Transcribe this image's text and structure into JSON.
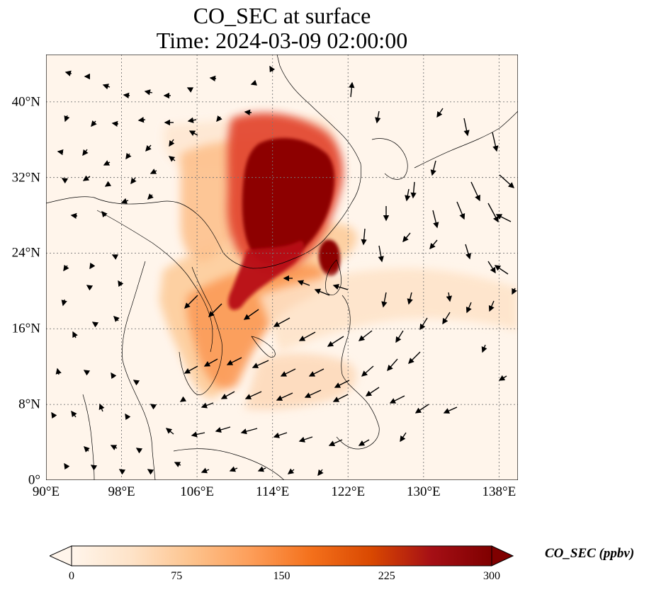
{
  "title": {
    "line1": "CO_SEC at surface",
    "line2": "Time: 2024-03-09 02:00:00"
  },
  "map": {
    "lon_range": [
      90,
      140
    ],
    "lat_range": [
      0,
      45
    ],
    "xticks": [
      {
        "value": 90,
        "label": "90°E"
      },
      {
        "value": 98,
        "label": "98°E"
      },
      {
        "value": 106,
        "label": "106°E"
      },
      {
        "value": 114,
        "label": "114°E"
      },
      {
        "value": 122,
        "label": "122°E"
      },
      {
        "value": 130,
        "label": "130°E"
      },
      {
        "value": 138,
        "label": "138°E"
      }
    ],
    "yticks": [
      {
        "value": 0,
        "label": "0°"
      },
      {
        "value": 8,
        "label": "8°N"
      },
      {
        "value": 16,
        "label": "16°N"
      },
      {
        "value": 24,
        "label": "24°N"
      },
      {
        "value": 32,
        "label": "32°N"
      },
      {
        "value": 40,
        "label": "40°N"
      }
    ]
  },
  "colorbar": {
    "label": "CO_SEC (ppbv)",
    "range": [
      0,
      300
    ],
    "ticks": [
      "0",
      "75",
      "150",
      "225",
      "300"
    ],
    "colors": [
      "#fff5eb",
      "#fee3c8",
      "#fdc38d",
      "#fd9d58",
      "#f4701b",
      "#d94801",
      "#a50f15",
      "#7f0000"
    ]
  }
}
